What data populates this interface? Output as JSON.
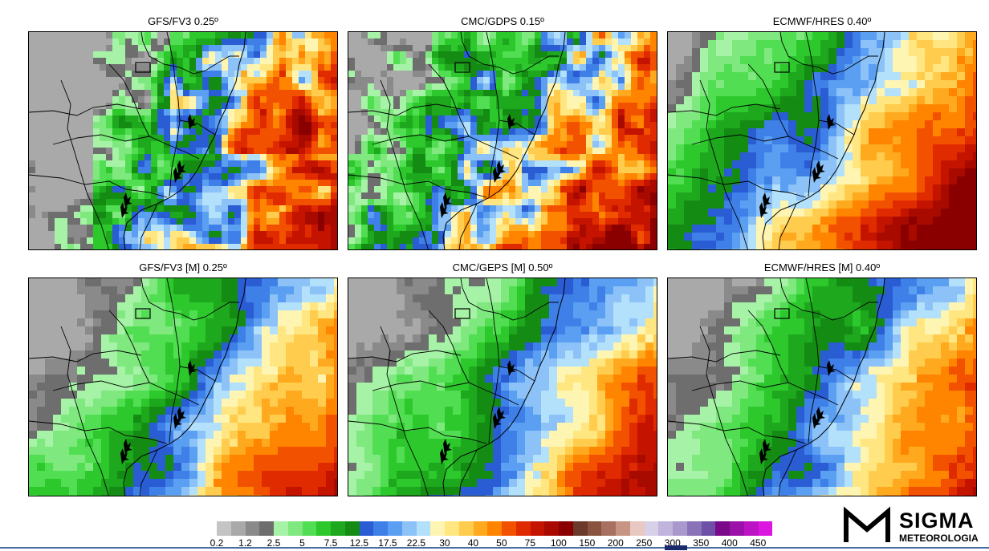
{
  "panels": [
    {
      "title": "GFS/FV3 0.25º",
      "scheme": "gfs"
    },
    {
      "title": "CMC/GDPS 0.15º",
      "scheme": "cmc"
    },
    {
      "title": "ECMWF/HRES 0.40º",
      "scheme": "ecm"
    },
    {
      "title": "GFS/FV3 [M] 0.25º",
      "scheme": "gfsm"
    },
    {
      "title": "CMC/GEPS [M] 0.50º",
      "scheme": "cmcm"
    },
    {
      "title": "ECMWF/HRES [M] 0.40º",
      "scheme": "ecmm"
    }
  ],
  "legend": {
    "colors": [
      "#c4c4c4",
      "#a9a9a9",
      "#8a8a8a",
      "#6e6e6e",
      "#a6f2a6",
      "#7fe87f",
      "#52de52",
      "#2cc82c",
      "#1ea81e",
      "#148c14",
      "#2a5cd4",
      "#3f7fe8",
      "#5a9ff2",
      "#8cc2f7",
      "#b3e0fa",
      "#fff5b3",
      "#ffe680",
      "#ffcc4d",
      "#ffa91f",
      "#ff8400",
      "#f25200",
      "#e02a00",
      "#c41400",
      "#a80a00",
      "#8a0000",
      "#6b3a2a",
      "#8a5340",
      "#a87060",
      "#c89585",
      "#e8c8c0",
      "#d8d0e8",
      "#c0b4dc",
      "#a898cc",
      "#8a72b8",
      "#6e50a8",
      "#7a0a8a",
      "#9a10a8",
      "#bc14c4",
      "#dc18e0"
    ],
    "labels": [
      "0.2",
      "1.2",
      "2.5",
      "5",
      "7.5",
      "12.5",
      "17.5",
      "22.5",
      "30",
      "40",
      "50",
      "75",
      "100",
      "150",
      "200",
      "250",
      "300",
      "350",
      "400",
      "450"
    ]
  },
  "logo": {
    "word": "SIGMA",
    "sub": "METEOROLOGIA"
  }
}
